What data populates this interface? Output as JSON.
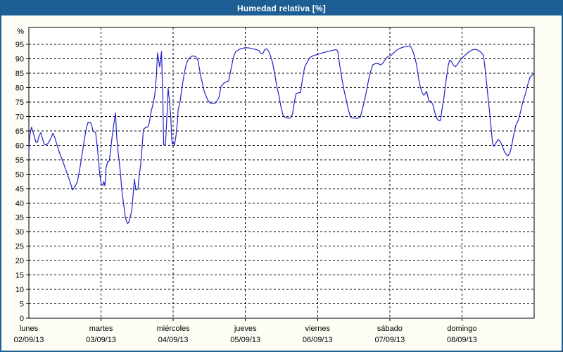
{
  "chart_data": {
    "type": "line",
    "title": "Humedad relativa [%]",
    "ylabel": "%",
    "unit_label": "%",
    "ylim": [
      0,
      100.9
    ],
    "y_ticks": [
      0,
      5,
      10,
      15,
      20,
      25,
      30,
      35,
      40,
      45,
      50,
      55,
      60,
      65,
      70,
      75,
      80,
      85,
      90,
      95
    ],
    "x_range_hours": [
      0,
      168
    ],
    "grid": "dashed",
    "legend": "none",
    "x_days": [
      {
        "name": "lunes",
        "date": "02/09/13"
      },
      {
        "name": "martes",
        "date": "03/09/13"
      },
      {
        "name": "miércoles",
        "date": "04/09/13"
      },
      {
        "name": "jueves",
        "date": "05/09/13"
      },
      {
        "name": "viernes",
        "date": "06/09/13"
      },
      {
        "name": "sábado",
        "date": "07/09/13"
      },
      {
        "name": "domingo",
        "date": "08/09/13"
      }
    ],
    "series": [
      {
        "name": "Humedad relativa",
        "color": "#2121c8",
        "points_hours_pct": [
          [
            0,
            57.3
          ],
          [
            0.2,
            62.5
          ],
          [
            0.5,
            64.4
          ],
          [
            0.9,
            66.3
          ],
          [
            1.4,
            64.5
          ],
          [
            1.9,
            62.8
          ],
          [
            2.3,
            61.2
          ],
          [
            2.8,
            61.0
          ],
          [
            3.5,
            63.6
          ],
          [
            4.0,
            64.4
          ],
          [
            4.4,
            62.8
          ],
          [
            5.1,
            60.4
          ],
          [
            5.8,
            60.1
          ],
          [
            6.6,
            61.0
          ],
          [
            7.3,
            62.4
          ],
          [
            8.0,
            64.2
          ],
          [
            8.7,
            62.5
          ],
          [
            9.1,
            61.0
          ],
          [
            10.3,
            57.1
          ],
          [
            11.5,
            53.9
          ],
          [
            12.6,
            50.6
          ],
          [
            13.8,
            47.0
          ],
          [
            14.5,
            44.5
          ],
          [
            15.2,
            45.5
          ],
          [
            16.1,
            47.2
          ],
          [
            16.8,
            51.0
          ],
          [
            17.8,
            57.5
          ],
          [
            18.5,
            62.4
          ],
          [
            19.2,
            66.5
          ],
          [
            19.7,
            68.0
          ],
          [
            20.1,
            68.1
          ],
          [
            20.8,
            67.4
          ],
          [
            21.3,
            65.0
          ],
          [
            21.8,
            64.6
          ],
          [
            22.2,
            64.4
          ],
          [
            22.7,
            60.0
          ],
          [
            23.2,
            54.3
          ],
          [
            23.6,
            49.5
          ],
          [
            24.1,
            46.6
          ],
          [
            24.6,
            46.1
          ],
          [
            24.9,
            47.4
          ],
          [
            25.3,
            46.0
          ],
          [
            25.7,
            52.3
          ],
          [
            26.2,
            54.3
          ],
          [
            26.7,
            54.5
          ],
          [
            27.1,
            57.5
          ],
          [
            27.8,
            64.0
          ],
          [
            28.8,
            71.3
          ],
          [
            29.2,
            63.0
          ],
          [
            29.7,
            57.5
          ],
          [
            30.4,
            51.0
          ],
          [
            30.9,
            44.5
          ],
          [
            31.6,
            38.8
          ],
          [
            32.1,
            34.8
          ],
          [
            32.8,
            32.8
          ],
          [
            33.2,
            33.2
          ],
          [
            34.2,
            37.2
          ],
          [
            34.9,
            46.0
          ],
          [
            35.1,
            48.2
          ],
          [
            35.6,
            44.5
          ],
          [
            36.3,
            44.8
          ],
          [
            36.7,
            49.4
          ],
          [
            37.2,
            53.5
          ],
          [
            37.7,
            60.0
          ],
          [
            38.1,
            65.5
          ],
          [
            38.8,
            66.2
          ],
          [
            39.5,
            66.3
          ],
          [
            40.0,
            67.7
          ],
          [
            40.7,
            71.8
          ],
          [
            41.4,
            74.8
          ],
          [
            41.9,
            77.8
          ],
          [
            42.4,
            84.0
          ],
          [
            42.8,
            92.1
          ],
          [
            43.5,
            87.2
          ],
          [
            44.1,
            92.5
          ],
          [
            44.6,
            74.0
          ],
          [
            44.8,
            60.2
          ],
          [
            45.4,
            60.0
          ],
          [
            45.9,
            70.0
          ],
          [
            46.3,
            79.8
          ],
          [
            46.8,
            75.0
          ],
          [
            47.2,
            69.7
          ],
          [
            47.5,
            62.4
          ],
          [
            47.7,
            60.4
          ],
          [
            48.1,
            61.2
          ],
          [
            48.4,
            60.0
          ],
          [
            48.9,
            63.2
          ],
          [
            49.4,
            68.1
          ],
          [
            49.6,
            72.1
          ],
          [
            50.3,
            75.4
          ],
          [
            51.0,
            80.7
          ],
          [
            51.7,
            85.2
          ],
          [
            52.4,
            88.4
          ],
          [
            53.1,
            90.0
          ],
          [
            54.1,
            90.9
          ],
          [
            54.7,
            91.0
          ],
          [
            55.4,
            90.8
          ],
          [
            56.2,
            89.6
          ],
          [
            57.1,
            84.3
          ],
          [
            58.3,
            78.7
          ],
          [
            59.4,
            75.8
          ],
          [
            60.4,
            74.6
          ],
          [
            61.3,
            74.5
          ],
          [
            62.2,
            74.8
          ],
          [
            63.2,
            76.6
          ],
          [
            63.9,
            80.4
          ],
          [
            64.8,
            81.5
          ],
          [
            65.7,
            82.1
          ],
          [
            66.4,
            82.3
          ],
          [
            67.2,
            86.4
          ],
          [
            68.1,
            90.9
          ],
          [
            68.8,
            92.5
          ],
          [
            70.0,
            93.3
          ],
          [
            71.1,
            93.7
          ],
          [
            72.1,
            93.9
          ],
          [
            73.2,
            93.8
          ],
          [
            74.2,
            93.5
          ],
          [
            75.3,
            93.3
          ],
          [
            76.5,
            92.9
          ],
          [
            77.2,
            91.9
          ],
          [
            77.7,
            91.7
          ],
          [
            78.4,
            93.2
          ],
          [
            79.1,
            93.5
          ],
          [
            79.8,
            92.5
          ],
          [
            80.5,
            90.5
          ],
          [
            81.0,
            88.8
          ],
          [
            81.7,
            85.0
          ],
          [
            82.4,
            80.6
          ],
          [
            83.1,
            77.5
          ],
          [
            83.8,
            73.5
          ],
          [
            84.5,
            70.5
          ],
          [
            85.2,
            69.7
          ],
          [
            86.1,
            69.4
          ],
          [
            87.0,
            69.5
          ],
          [
            87.7,
            71.0
          ],
          [
            88.2,
            74.6
          ],
          [
            88.9,
            78.0
          ],
          [
            89.6,
            78.2
          ],
          [
            90.3,
            78.3
          ],
          [
            91.0,
            83.1
          ],
          [
            91.7,
            87.2
          ],
          [
            92.7,
            89.2
          ],
          [
            93.4,
            90.4
          ],
          [
            94.3,
            91.0
          ],
          [
            95.2,
            91.3
          ],
          [
            96.2,
            91.6
          ],
          [
            97.1,
            91.9
          ],
          [
            98.0,
            92.2
          ],
          [
            99.2,
            92.5
          ],
          [
            100.4,
            92.8
          ],
          [
            101.5,
            93.1
          ],
          [
            102.2,
            93.2
          ],
          [
            102.7,
            92.7
          ],
          [
            103.4,
            87.5
          ],
          [
            104.1,
            83.0
          ],
          [
            104.8,
            79.0
          ],
          [
            105.5,
            75.8
          ],
          [
            106.2,
            72.5
          ],
          [
            106.9,
            69.8
          ],
          [
            107.6,
            69.5
          ],
          [
            108.6,
            69.4
          ],
          [
            109.5,
            69.4
          ],
          [
            110.2,
            69.8
          ],
          [
            110.9,
            72.6
          ],
          [
            111.6,
            75.5
          ],
          [
            112.3,
            79.0
          ],
          [
            113.0,
            83.0
          ],
          [
            113.7,
            85.8
          ],
          [
            114.4,
            88.0
          ],
          [
            115.4,
            88.4
          ],
          [
            116.3,
            88.3
          ],
          [
            117.0,
            87.9
          ],
          [
            117.7,
            88.5
          ],
          [
            118.4,
            89.6
          ],
          [
            119.1,
            90.6
          ],
          [
            119.8,
            91.0
          ],
          [
            120.5,
            91.3
          ],
          [
            121.4,
            92.2
          ],
          [
            122.4,
            93.1
          ],
          [
            123.3,
            93.6
          ],
          [
            124.2,
            94.0
          ],
          [
            125.2,
            94.2
          ],
          [
            126.1,
            94.4
          ],
          [
            126.8,
            94.5
          ],
          [
            127.5,
            93.2
          ],
          [
            128.2,
            91.0
          ],
          [
            128.9,
            88.0
          ],
          [
            129.6,
            83.1
          ],
          [
            130.1,
            80.5
          ],
          [
            130.8,
            78.2
          ],
          [
            131.3,
            77.4
          ],
          [
            131.7,
            77.8
          ],
          [
            132.2,
            78.8
          ],
          [
            132.7,
            76.8
          ],
          [
            133.1,
            75.0
          ],
          [
            133.6,
            75.4
          ],
          [
            134.3,
            74.2
          ],
          [
            135.0,
            71.3
          ],
          [
            135.7,
            69.2
          ],
          [
            136.4,
            68.5
          ],
          [
            136.9,
            68.7
          ],
          [
            137.3,
            72.1
          ],
          [
            138.0,
            76.5
          ],
          [
            138.7,
            82.5
          ],
          [
            139.4,
            87.5
          ],
          [
            139.9,
            89.6
          ],
          [
            140.4,
            89.2
          ],
          [
            141.1,
            87.9
          ],
          [
            141.8,
            87.3
          ],
          [
            142.5,
            88.0
          ],
          [
            143.2,
            89.3
          ],
          [
            143.9,
            90.2
          ],
          [
            144.8,
            91.0
          ],
          [
            145.8,
            92.0
          ],
          [
            146.7,
            92.7
          ],
          [
            147.6,
            93.2
          ],
          [
            148.6,
            93.3
          ],
          [
            149.5,
            92.9
          ],
          [
            150.4,
            92.2
          ],
          [
            151.1,
            91.3
          ],
          [
            151.8,
            85.6
          ],
          [
            152.5,
            78.2
          ],
          [
            153.2,
            71.5
          ],
          [
            153.7,
            66.0
          ],
          [
            154.2,
            60.4
          ],
          [
            154.6,
            59.6
          ],
          [
            155.3,
            60.8
          ],
          [
            156.0,
            62.0
          ],
          [
            156.7,
            61.4
          ],
          [
            157.4,
            59.8
          ],
          [
            158.1,
            57.8
          ],
          [
            158.8,
            56.8
          ],
          [
            159.3,
            56.3
          ],
          [
            160.0,
            57.5
          ],
          [
            160.5,
            59.6
          ],
          [
            161.2,
            63.6
          ],
          [
            161.9,
            66.9
          ],
          [
            162.8,
            68.9
          ],
          [
            163.5,
            71.8
          ],
          [
            164.2,
            75.0
          ],
          [
            165.2,
            78.2
          ],
          [
            165.9,
            81.1
          ],
          [
            166.6,
            83.5
          ],
          [
            167.3,
            84.3
          ],
          [
            168.0,
            84.9
          ]
        ]
      }
    ],
    "colors": {
      "frame_blue": "#1d5f94",
      "line_blue": "#2121c8",
      "window_bg": "#fdfdf5",
      "plot_bg": "#ffffff",
      "grid": "#000000",
      "title_text": "#ffffff"
    }
  }
}
